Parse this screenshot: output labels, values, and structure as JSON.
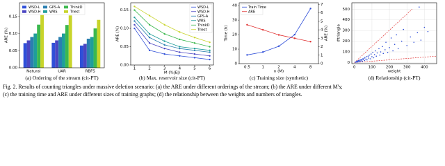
{
  "chart_data": [
    {
      "type": "bar",
      "caption": "(a) Ordering of the stream (cit-PT)",
      "ylabel": "ARE (%)",
      "categories": [
        "Natural",
        "UAR",
        "RBFS"
      ],
      "series": [
        {
          "name": "WSD-L",
          "color": "#2f4fd8",
          "values": [
            0.072,
            0.073,
            0.065
          ]
        },
        {
          "name": "WSD-H",
          "color": "#4a45c2",
          "values": [
            0.08,
            0.08,
            0.07
          ]
        },
        {
          "name": "GPS-A",
          "color": "#2a7fb0",
          "values": [
            0.09,
            0.09,
            0.085
          ]
        },
        {
          "name": "WRS",
          "color": "#1f9e9a",
          "values": [
            0.1,
            0.1,
            0.09
          ]
        },
        {
          "name": "ThinkD",
          "color": "#3cb84e",
          "values": [
            0.126,
            0.125,
            0.115
          ]
        },
        {
          "name": "Triest",
          "color": "#c8d42a",
          "values": [
            0.154,
            0.153,
            0.14
          ]
        }
      ],
      "ylim": [
        0,
        0.19
      ],
      "yticks": [
        {
          "value": 0,
          "label": "0.00"
        },
        {
          "value": 0.05,
          "label": "0.05"
        },
        {
          "value": 0.1,
          "label": "0.10"
        },
        {
          "value": 0.15,
          "label": "0.15"
        }
      ],
      "legend": "upper left",
      "grid": false
    },
    {
      "type": "line",
      "caption": "(b) Max. reservoir size (cit-PT)",
      "xlabel": "M (%|E|)",
      "ylabel": "ARE (%)",
      "x": [
        1,
        2,
        3,
        4,
        5,
        6
      ],
      "series": [
        {
          "name": "WSD-L",
          "color": "#2f4fd8",
          "values": [
            0.1,
            0.04,
            0.03,
            0.025,
            0.02,
            0.015
          ]
        },
        {
          "name": "WSD-H",
          "color": "#4a45c2",
          "values": [
            0.11,
            0.06,
            0.045,
            0.035,
            0.03,
            0.025
          ]
        },
        {
          "name": "GPS-A",
          "color": "#2a7fb0",
          "values": [
            0.12,
            0.075,
            0.055,
            0.045,
            0.04,
            0.035
          ]
        },
        {
          "name": "WRS",
          "color": "#1f9e9a",
          "values": [
            0.13,
            0.085,
            0.065,
            0.05,
            0.045,
            0.04
          ]
        },
        {
          "name": "ThinkD",
          "color": "#3cb84e",
          "values": [
            0.15,
            0.11,
            0.085,
            0.07,
            0.06,
            0.05
          ]
        },
        {
          "name": "Triest",
          "color": "#c8d42a",
          "values": [
            0.16,
            0.135,
            0.11,
            0.09,
            0.075,
            0.062
          ]
        }
      ],
      "xlim": [
        0.75,
        6.25
      ],
      "xticks": [
        1,
        2,
        3,
        4,
        5,
        6
      ],
      "ylim": [
        0,
        0.17
      ],
      "yticks": [
        {
          "value": 0,
          "label": "0.00"
        },
        {
          "value": 0.05,
          "label": "0.05"
        },
        {
          "value": 0.1,
          "label": "0.10"
        },
        {
          "value": 0.15,
          "label": "0.15"
        }
      ],
      "legend": "upper right",
      "grid": false
    },
    {
      "type": "dual",
      "caption": "(c) Training size (synthetic)",
      "xlabel": "n (M)",
      "ylabel": "Time (h)",
      "y2label": "ARE (%)",
      "categories": [
        "0.5",
        "1",
        "2",
        "4",
        "8"
      ],
      "series": [
        {
          "name": "Train Time",
          "color": "#2f4fd8",
          "values": [
            6,
            8,
            12,
            20,
            38
          ]
        },
        {
          "name": "ARE",
          "color": "#e03030",
          "axis": "y2",
          "values": [
            4.6,
            4.0,
            3.4,
            3.0,
            2.6
          ]
        }
      ],
      "ylim": [
        0,
        42
      ],
      "yticks": [
        0,
        10,
        20,
        30,
        40
      ],
      "y2lim": [
        0,
        7.2
      ],
      "y2ticks": [
        0,
        1,
        2,
        3,
        4,
        5,
        6,
        7
      ],
      "legend": "upper left",
      "grid": false
    },
    {
      "type": "scatter",
      "caption": "(d) Relationship (cit-PT)",
      "xlabel": "weight",
      "ylabel": "#triangle",
      "series": [
        {
          "color": "#2f4fd8",
          "x": [
            5,
            8,
            10,
            12,
            15,
            18,
            20,
            22,
            25,
            28,
            30,
            33,
            36,
            40,
            42,
            45,
            48,
            50,
            55,
            58,
            60,
            65,
            70,
            72,
            78,
            80,
            85,
            90,
            95,
            100,
            105,
            110,
            115,
            120,
            125,
            130,
            140,
            145,
            150,
            160,
            165,
            175,
            180,
            190,
            200,
            210,
            220,
            230,
            240,
            250,
            270,
            280,
            300,
            320,
            340,
            360,
            380,
            400,
            370,
            420
          ],
          "values": [
            3,
            6,
            4,
            10,
            8,
            14,
            5,
            18,
            12,
            20,
            9,
            26,
            15,
            30,
            22,
            12,
            35,
            28,
            40,
            20,
            48,
            33,
            55,
            25,
            60,
            42,
            70,
            35,
            80,
            55,
            95,
            45,
            75,
            110,
            60,
            90,
            130,
            70,
            100,
            150,
            85,
            120,
            190,
            95,
            140,
            230,
            110,
            170,
            260,
            130,
            200,
            310,
            160,
            240,
            190,
            280,
            210,
            330,
            520,
            290
          ]
        }
      ],
      "ref_lines": [
        {
          "color": "#e03030",
          "x": [
            0,
            330
          ],
          "values": [
            0,
            500
          ]
        },
        {
          "color": "#e03030",
          "x": [
            0,
            470
          ],
          "values": [
            0,
            60
          ]
        }
      ],
      "xlim": [
        -15,
        470
      ],
      "xticks": [
        0,
        100,
        200,
        300,
        400
      ],
      "ylim": [
        -10,
        560
      ],
      "yticks": [
        0,
        100,
        200,
        300,
        400,
        500
      ],
      "grid": true
    }
  ],
  "figure_caption": [
    "Fig. 2.   Results of counting triangles under massive deletion scenario: (a) the ARE under different orderings of the stream; (b) the ARE under different M's;",
    "(c) the training time and ARE under different sizes of training graphs; (d) the relationship between the weights and numbers of triangles."
  ]
}
